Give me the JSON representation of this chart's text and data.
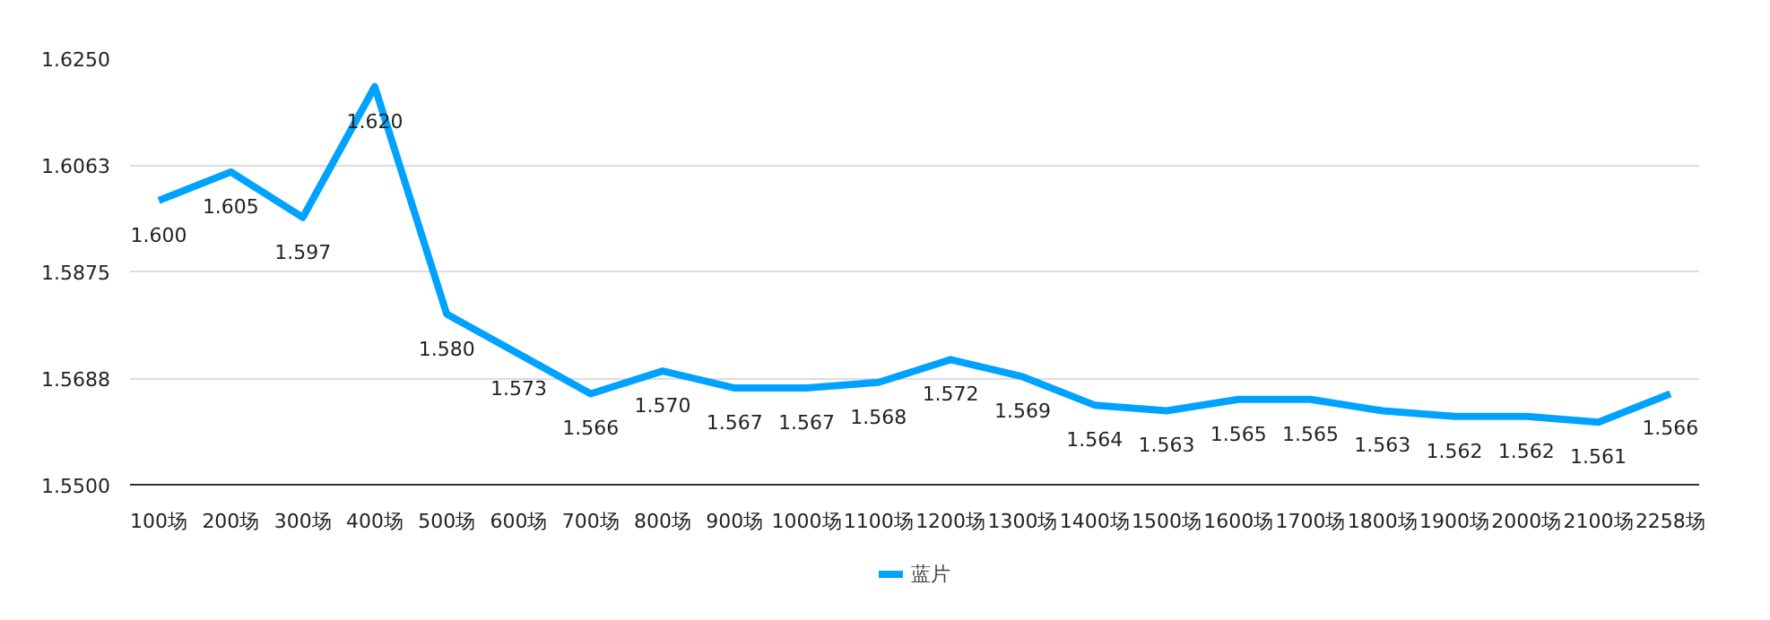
{
  "chart_data": {
    "type": "line",
    "categories": [
      "100场",
      "200场",
      "300场",
      "400场",
      "500场",
      "600场",
      "700场",
      "800场",
      "900场",
      "1000场",
      "1100场",
      "1200场",
      "1300场",
      "1400场",
      "1500场",
      "1600场",
      "1700场",
      "1800场",
      "1900场",
      "2000场",
      "2100场",
      "2258场"
    ],
    "series": [
      {
        "name": "蓝片",
        "color": "#00a2ff",
        "values": [
          1.6,
          1.605,
          1.597,
          1.62,
          1.58,
          1.573,
          1.566,
          1.57,
          1.567,
          1.567,
          1.568,
          1.572,
          1.569,
          1.564,
          1.563,
          1.565,
          1.565,
          1.563,
          1.562,
          1.562,
          1.561,
          1.566
        ],
        "value_labels": [
          "1.600",
          "1.605",
          "1.597",
          "1.620",
          "1.580",
          "1.573",
          "1.566",
          "1.570",
          "1.567",
          "1.567",
          "1.568",
          "1.572",
          "1.569",
          "1.564",
          "1.563",
          "1.565",
          "1.565",
          "1.563",
          "1.562",
          "1.562",
          "1.561",
          "1.566"
        ]
      }
    ],
    "ylim": [
      1.55,
      1.625
    ],
    "yticks": [
      {
        "value": 1.55,
        "label": "1.5500"
      },
      {
        "value": 1.56875,
        "label": "1.5688"
      },
      {
        "value": 1.5875,
        "label": "1.5875"
      },
      {
        "value": 1.60625,
        "label": "1.6063"
      },
      {
        "value": 1.625,
        "label": "1.6250"
      }
    ],
    "grid": "y",
    "legend": "bottom",
    "marker": "none",
    "line_style": "solid"
  }
}
